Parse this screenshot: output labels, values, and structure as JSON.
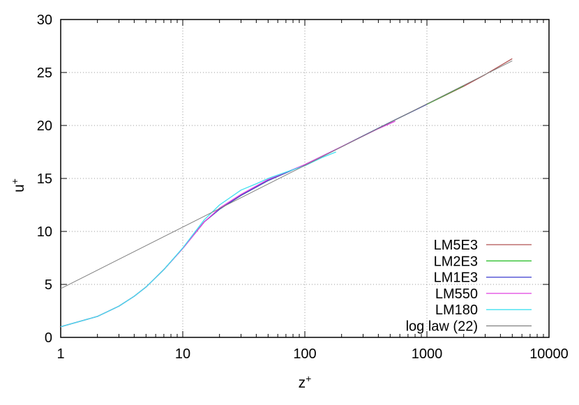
{
  "chart_data": {
    "type": "line",
    "xlabel": "z",
    "xlabel_sup": "+",
    "ylabel": "u",
    "ylabel_sup": "+",
    "x_scale": "log",
    "xlim": [
      1,
      10000
    ],
    "ylim": [
      0,
      30
    ],
    "x_ticks": [
      1,
      10,
      100,
      1000,
      10000
    ],
    "x_tick_labels": [
      "1",
      "10",
      "100",
      "1000",
      "10000"
    ],
    "y_ticks": [
      0,
      5,
      10,
      15,
      20,
      25,
      30
    ],
    "y_tick_labels": [
      "0",
      "5",
      "10",
      "15",
      "20",
      "25",
      "30"
    ],
    "grid": true,
    "legend_position": "bottom-right",
    "series": [
      {
        "name": "LM5E3",
        "color": "#b05050",
        "x": [
          1,
          2,
          3,
          4,
          5,
          7,
          10,
          15,
          20,
          30,
          50,
          100,
          200,
          500,
          1000,
          2000,
          3000,
          5000
        ],
        "y": [
          1.0,
          1.98,
          2.95,
          3.88,
          4.75,
          6.4,
          8.4,
          10.9,
          12.1,
          13.4,
          14.8,
          16.3,
          18.0,
          20.3,
          22.0,
          23.7,
          24.8,
          26.3
        ]
      },
      {
        "name": "LM2E3",
        "color": "#30c030",
        "x": [
          1,
          2,
          3,
          4,
          5,
          7,
          10,
          15,
          20,
          30,
          50,
          100,
          200,
          500,
          1000,
          2000
        ],
        "y": [
          1.0,
          1.98,
          2.95,
          3.88,
          4.75,
          6.4,
          8.4,
          10.9,
          12.1,
          13.4,
          14.8,
          16.3,
          18.0,
          20.3,
          22.0,
          23.75
        ]
      },
      {
        "name": "LM1E3",
        "color": "#4040d0",
        "x": [
          1,
          2,
          3,
          4,
          5,
          7,
          10,
          15,
          20,
          30,
          50,
          100,
          200,
          500,
          1000
        ],
        "y": [
          1.0,
          1.98,
          2.95,
          3.88,
          4.75,
          6.4,
          8.4,
          10.9,
          12.1,
          13.4,
          14.8,
          16.3,
          18.0,
          20.3,
          22.0
        ]
      },
      {
        "name": "LM550",
        "color": "#e040e0",
        "x": [
          1,
          2,
          3,
          4,
          5,
          7,
          10,
          15,
          20,
          30,
          50,
          100,
          200,
          400,
          550
        ],
        "y": [
          1.0,
          1.98,
          2.95,
          3.88,
          4.75,
          6.4,
          8.4,
          10.9,
          12.2,
          13.5,
          14.9,
          16.3,
          18.0,
          19.7,
          20.4
        ]
      },
      {
        "name": "LM180",
        "color": "#40e0f0",
        "x": [
          1,
          2,
          3,
          4,
          5,
          7,
          10,
          15,
          20,
          30,
          40,
          50,
          70,
          100,
          140,
          180
        ],
        "y": [
          1.0,
          1.98,
          2.95,
          3.88,
          4.75,
          6.4,
          8.45,
          11.1,
          12.5,
          13.9,
          14.5,
          15.0,
          15.6,
          16.2,
          17.0,
          17.5
        ]
      },
      {
        "name": "log law (22)",
        "color": "#808080",
        "x": [
          1,
          5000
        ],
        "y": [
          4.6,
          26.1
        ]
      }
    ]
  }
}
